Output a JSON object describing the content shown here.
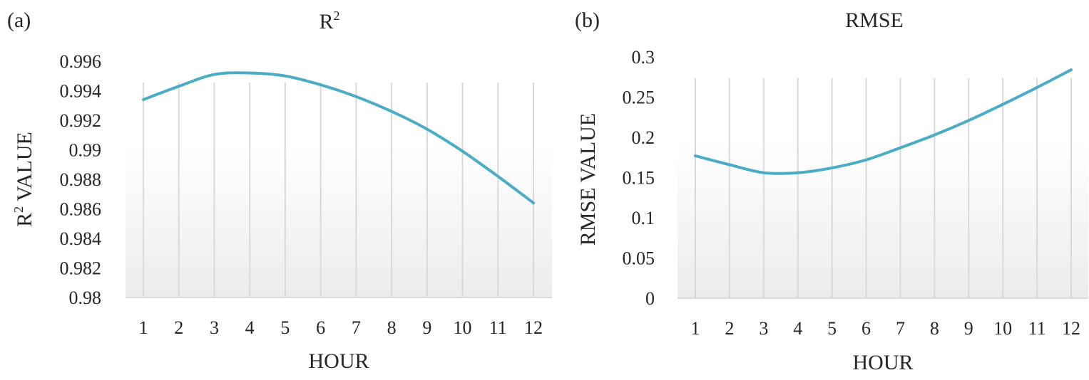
{
  "chart_data": [
    {
      "type": "line",
      "panel_label": "(a)",
      "title": "R",
      "title_sup": "2",
      "xlabel": "HOUR",
      "ylabel": "R",
      "ylabel_sup": "2",
      "ylabel_rest": " VALUE",
      "categories": [
        "1",
        "2",
        "3",
        "4",
        "5",
        "6",
        "7",
        "8",
        "9",
        "10",
        "11",
        "12"
      ],
      "yticks": [
        "0.98",
        "0.982",
        "0.984",
        "0.986",
        "0.988",
        "0.99",
        "0.992",
        "0.994",
        "0.996"
      ],
      "ylim": [
        0.98,
        0.996
      ],
      "series": [
        {
          "values": [
            0.9934,
            0.9943,
            0.9951,
            0.9952,
            0.995,
            0.9944,
            0.9936,
            0.9926,
            0.9914,
            0.9899,
            0.9882,
            0.9864
          ]
        }
      ],
      "grid": "vertical",
      "line_color": "#4bacc6"
    },
    {
      "type": "line",
      "panel_label": "(b)",
      "title": "RMSE",
      "xlabel": "HOUR",
      "ylabel": "RMSE VALUE",
      "categories": [
        "1",
        "2",
        "3",
        "4",
        "5",
        "6",
        "7",
        "8",
        "9",
        "10",
        "11",
        "12"
      ],
      "yticks": [
        "0",
        "0.05",
        "0.1",
        "0.15",
        "0.2",
        "0.25",
        "0.3"
      ],
      "ylim": [
        0,
        0.3
      ],
      "series": [
        {
          "values": [
            0.177,
            0.166,
            0.156,
            0.156,
            0.162,
            0.172,
            0.187,
            0.203,
            0.221,
            0.241,
            0.262,
            0.284
          ]
        }
      ],
      "grid": "vertical",
      "line_color": "#4bacc6"
    }
  ]
}
